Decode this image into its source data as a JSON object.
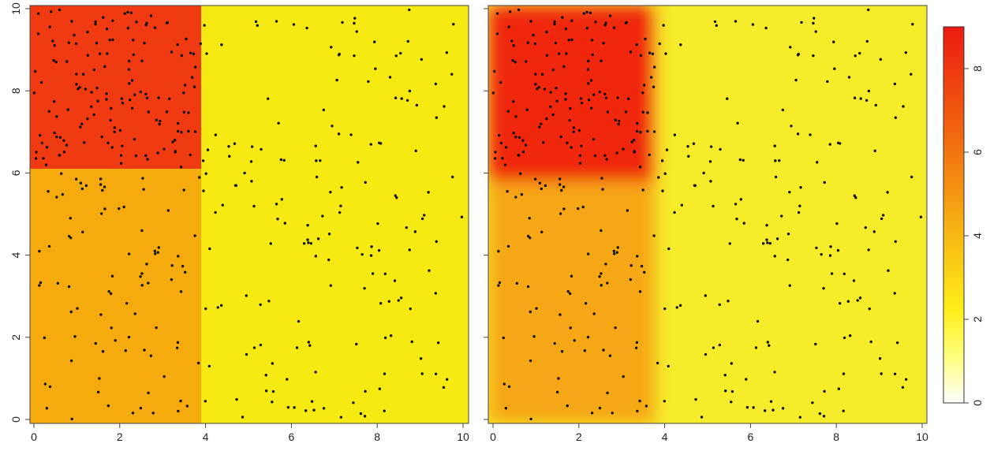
{
  "chart_data": [
    {
      "type": "heatmap",
      "panel": "left",
      "title": "",
      "xlabel": "",
      "ylabel": "",
      "xlim": [
        0,
        10
      ],
      "ylim": [
        0,
        10
      ],
      "x_ticks": [
        "0",
        "2",
        "4",
        "6",
        "8",
        "10"
      ],
      "y_ticks": [
        "0",
        "2",
        "4",
        "6",
        "8",
        "10"
      ],
      "regions": [
        {
          "x0": 0,
          "x1": 3.9,
          "y0": 6.1,
          "y1": 10,
          "value": 8.4,
          "color": "#f03a12"
        },
        {
          "x0": 0,
          "x1": 3.9,
          "y0": 0,
          "y1": 6.1,
          "value": 4.3,
          "color": "#f5ab0d"
        },
        {
          "x0": 3.9,
          "x1": 10,
          "y0": 0,
          "y1": 10,
          "value": 2.1,
          "color": "#f6ea12"
        }
      ],
      "points": "scattered sample locations (approx. 400)"
    },
    {
      "type": "heatmap",
      "panel": "right",
      "title": "",
      "xlabel": "",
      "ylabel": "",
      "xlim": [
        0,
        10
      ],
      "ylim": [
        0,
        10
      ],
      "x_ticks": [
        "0",
        "2",
        "4",
        "6",
        "8",
        "10"
      ],
      "y_ticks": [
        "",
        "",
        "",
        "",
        "",
        ""
      ],
      "regions": [
        {
          "x0": 0,
          "x1": 3.8,
          "y0": 5.8,
          "y1": 10,
          "value": 8.3,
          "color": "#f0250f"
        },
        {
          "x0": 0,
          "x1": 3.8,
          "y0": 0,
          "y1": 5.8,
          "value": 4.4,
          "color": "#f5a712"
        },
        {
          "x0": 3.8,
          "x1": 10,
          "y0": 0,
          "y1": 10,
          "value": 2.2,
          "color": "#f6ec2a"
        }
      ],
      "points": "same sample locations as left panel"
    }
  ],
  "colorbar": {
    "ticks": [
      "0",
      "2",
      "4",
      "6",
      "8"
    ],
    "range": [
      0,
      9
    ],
    "colors": [
      "#ffffff",
      "#ffff66",
      "#ffe614",
      "#f5a712",
      "#f26b0f",
      "#ec1a10"
    ]
  },
  "palette": {
    "axis": "#333333",
    "point": "#111111"
  }
}
